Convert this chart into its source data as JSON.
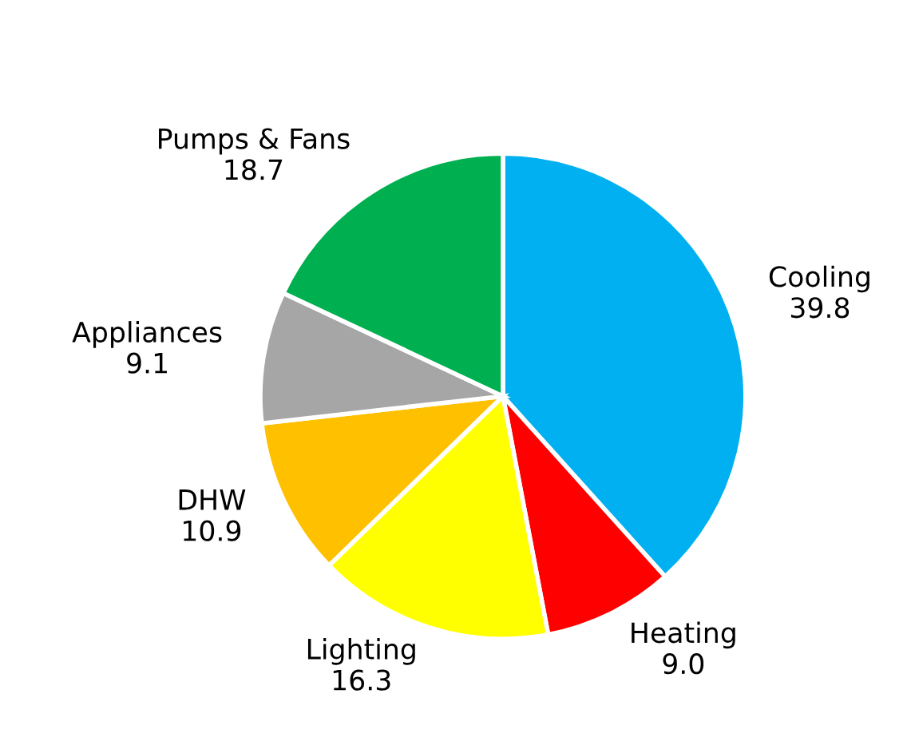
{
  "chart_data": {
    "type": "pie",
    "categories": [
      "Cooling",
      "Heating",
      "Lighting",
      "DHW",
      "Appliances",
      "Pumps & Fans"
    ],
    "values": [
      39.8,
      9.0,
      16.3,
      10.9,
      9.1,
      18.7
    ],
    "colors": [
      "#00b0f0",
      "#ff0000",
      "#ffff00",
      "#ffc000",
      "#a6a6a6",
      "#00b050"
    ],
    "value_labels": [
      "39.8",
      "9.0",
      "16.3",
      "10.9",
      "9.1",
      "18.7"
    ]
  }
}
